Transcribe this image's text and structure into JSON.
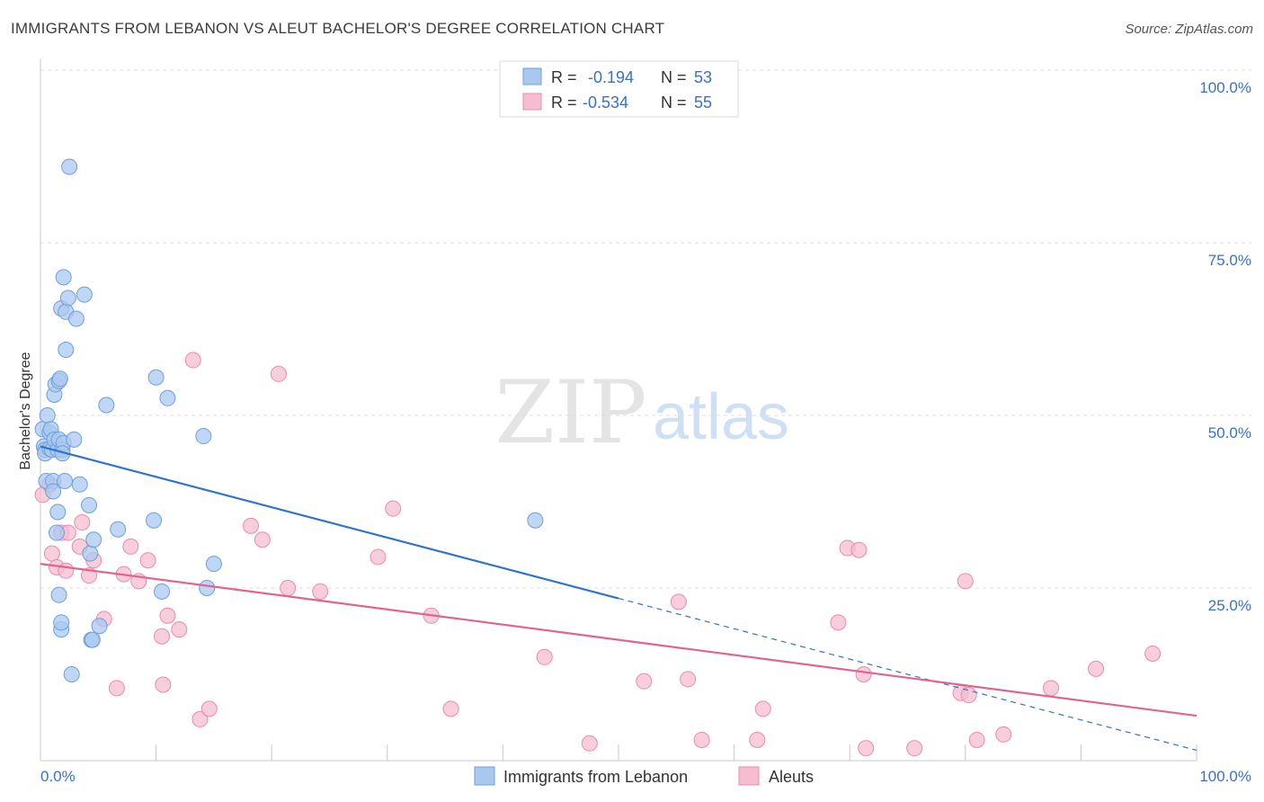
{
  "title": "IMMIGRANTS FROM LEBANON VS ALEUT BACHELOR'S DEGREE CORRELATION CHART",
  "source": "Source: ZipAtlas.com",
  "watermark": {
    "zip": "ZIP",
    "atlas": "atlas"
  },
  "legend_top": [
    {
      "r_label": "R =",
      "r_value": "-0.194",
      "n_label": "N =",
      "n_value": "53"
    },
    {
      "r_label": "R =",
      "r_value": "-0.534",
      "n_label": "N =",
      "n_value": "55"
    }
  ],
  "colors": {
    "blue_fill": "#a9c8f0",
    "blue_stroke": "#6f9fd8",
    "blue_line": "#2f72d0",
    "pink_fill": "#f6bdd0",
    "pink_stroke": "#e98bab",
    "pink_line": "#e0648f",
    "value_text": "#3a70c8",
    "grid": "#dddddd"
  },
  "chart_data": {
    "type": "scatter",
    "title": "IMMIGRANTS FROM LEBANON VS ALEUT BACHELOR'S DEGREE CORRELATION CHART",
    "xlabel": "",
    "ylabel": "Bachelor's Degree",
    "xlim": [
      0,
      100
    ],
    "ylim": [
      0,
      100
    ],
    "x_tick_labels": [
      "0.0%",
      "100.0%"
    ],
    "y_tick_labels": [
      "25.0%",
      "50.0%",
      "75.0%",
      "100.0%"
    ],
    "y_ticks": [
      25,
      50,
      75,
      100
    ],
    "grid": true,
    "legend_position": "bottom",
    "series": [
      {
        "name": "Immigrants from Lebanon",
        "color": "blue",
        "R": -0.194,
        "N": 53,
        "trend": {
          "x_start": 0,
          "y_start": 45.5,
          "x_end": 50,
          "y_end": 23.5,
          "dashed_to_x": 100,
          "dashed_y_end": 1.5
        },
        "points": [
          [
            0.2,
            48
          ],
          [
            0.3,
            45.5
          ],
          [
            0.4,
            45
          ],
          [
            0.4,
            44.5
          ],
          [
            0.5,
            40.5
          ],
          [
            0.6,
            50
          ],
          [
            0.8,
            45.2
          ],
          [
            0.8,
            47.5
          ],
          [
            0.9,
            48
          ],
          [
            1.0,
            45
          ],
          [
            1.1,
            40.5
          ],
          [
            1.1,
            39
          ],
          [
            1.2,
            46.5
          ],
          [
            1.5,
            45
          ],
          [
            1.6,
            46.5
          ],
          [
            1.2,
            53
          ],
          [
            1.3,
            54.5
          ],
          [
            1.6,
            55
          ],
          [
            1.7,
            55.3
          ],
          [
            1.4,
            33
          ],
          [
            1.5,
            36
          ],
          [
            1.6,
            24
          ],
          [
            1.8,
            19
          ],
          [
            1.8,
            20
          ],
          [
            1.8,
            65.5
          ],
          [
            1.9,
            45
          ],
          [
            2.0,
            46
          ],
          [
            1.9,
            44.5
          ],
          [
            2.0,
            70
          ],
          [
            2.1,
            40.5
          ],
          [
            2.2,
            59.5
          ],
          [
            2.2,
            65
          ],
          [
            2.4,
            67
          ],
          [
            2.5,
            86
          ],
          [
            2.7,
            12.5
          ],
          [
            2.9,
            46.5
          ],
          [
            3.1,
            64
          ],
          [
            3.4,
            40
          ],
          [
            3.8,
            67.5
          ],
          [
            4.2,
            37
          ],
          [
            4.4,
            17.5
          ],
          [
            4.3,
            30
          ],
          [
            4.5,
            17.5
          ],
          [
            4.6,
            32
          ],
          [
            5.1,
            19.5
          ],
          [
            5.7,
            51.5
          ],
          [
            6.7,
            33.5
          ],
          [
            9.8,
            34.8
          ],
          [
            10.0,
            55.5
          ],
          [
            10.5,
            24.5
          ],
          [
            11.0,
            52.5
          ],
          [
            14.1,
            47
          ],
          [
            14.4,
            25
          ],
          [
            15.0,
            28.5
          ],
          [
            42.8,
            34.8
          ]
        ]
      },
      {
        "name": "Aleuts",
        "color": "pink",
        "R": -0.534,
        "N": 55,
        "trend": {
          "x_start": 0,
          "y_start": 28.5,
          "x_end": 100,
          "y_end": 6.5
        },
        "points": [
          [
            0.2,
            38.5
          ],
          [
            0.8,
            40
          ],
          [
            1.0,
            30
          ],
          [
            1.4,
            28
          ],
          [
            1.8,
            33
          ],
          [
            2.2,
            27.5
          ],
          [
            2.4,
            33
          ],
          [
            3.4,
            31
          ],
          [
            3.6,
            34.5
          ],
          [
            4.2,
            26.8
          ],
          [
            4.6,
            29
          ],
          [
            5.5,
            20.5
          ],
          [
            6.6,
            10.5
          ],
          [
            7.2,
            27
          ],
          [
            7.8,
            31
          ],
          [
            8.5,
            26
          ],
          [
            9.3,
            29
          ],
          [
            10.5,
            18
          ],
          [
            10.6,
            11
          ],
          [
            11.0,
            21
          ],
          [
            12.0,
            19
          ],
          [
            13.8,
            6
          ],
          [
            14.6,
            7.5
          ],
          [
            13.2,
            58
          ],
          [
            18.2,
            34
          ],
          [
            19.2,
            32
          ],
          [
            20.6,
            56
          ],
          [
            21.4,
            25
          ],
          [
            24.2,
            24.5
          ],
          [
            29.2,
            29.5
          ],
          [
            30.5,
            36.5
          ],
          [
            33.8,
            21
          ],
          [
            35.5,
            7.5
          ],
          [
            43.6,
            15
          ],
          [
            47.5,
            2.5
          ],
          [
            52.2,
            11.5
          ],
          [
            55.2,
            23
          ],
          [
            56.0,
            11.8
          ],
          [
            57.2,
            3
          ],
          [
            62.0,
            3
          ],
          [
            62.5,
            7.5
          ],
          [
            69.0,
            20
          ],
          [
            69.8,
            30.8
          ],
          [
            70.8,
            30.5
          ],
          [
            71.2,
            12.5
          ],
          [
            71.4,
            1.8
          ],
          [
            75.6,
            1.8
          ],
          [
            79.6,
            9.8
          ],
          [
            80.0,
            26
          ],
          [
            80.3,
            9.5
          ],
          [
            81.0,
            3
          ],
          [
            83.3,
            3.8
          ],
          [
            87.4,
            10.5
          ],
          [
            91.3,
            13.3
          ],
          [
            96.2,
            15.5
          ]
        ]
      }
    ]
  }
}
